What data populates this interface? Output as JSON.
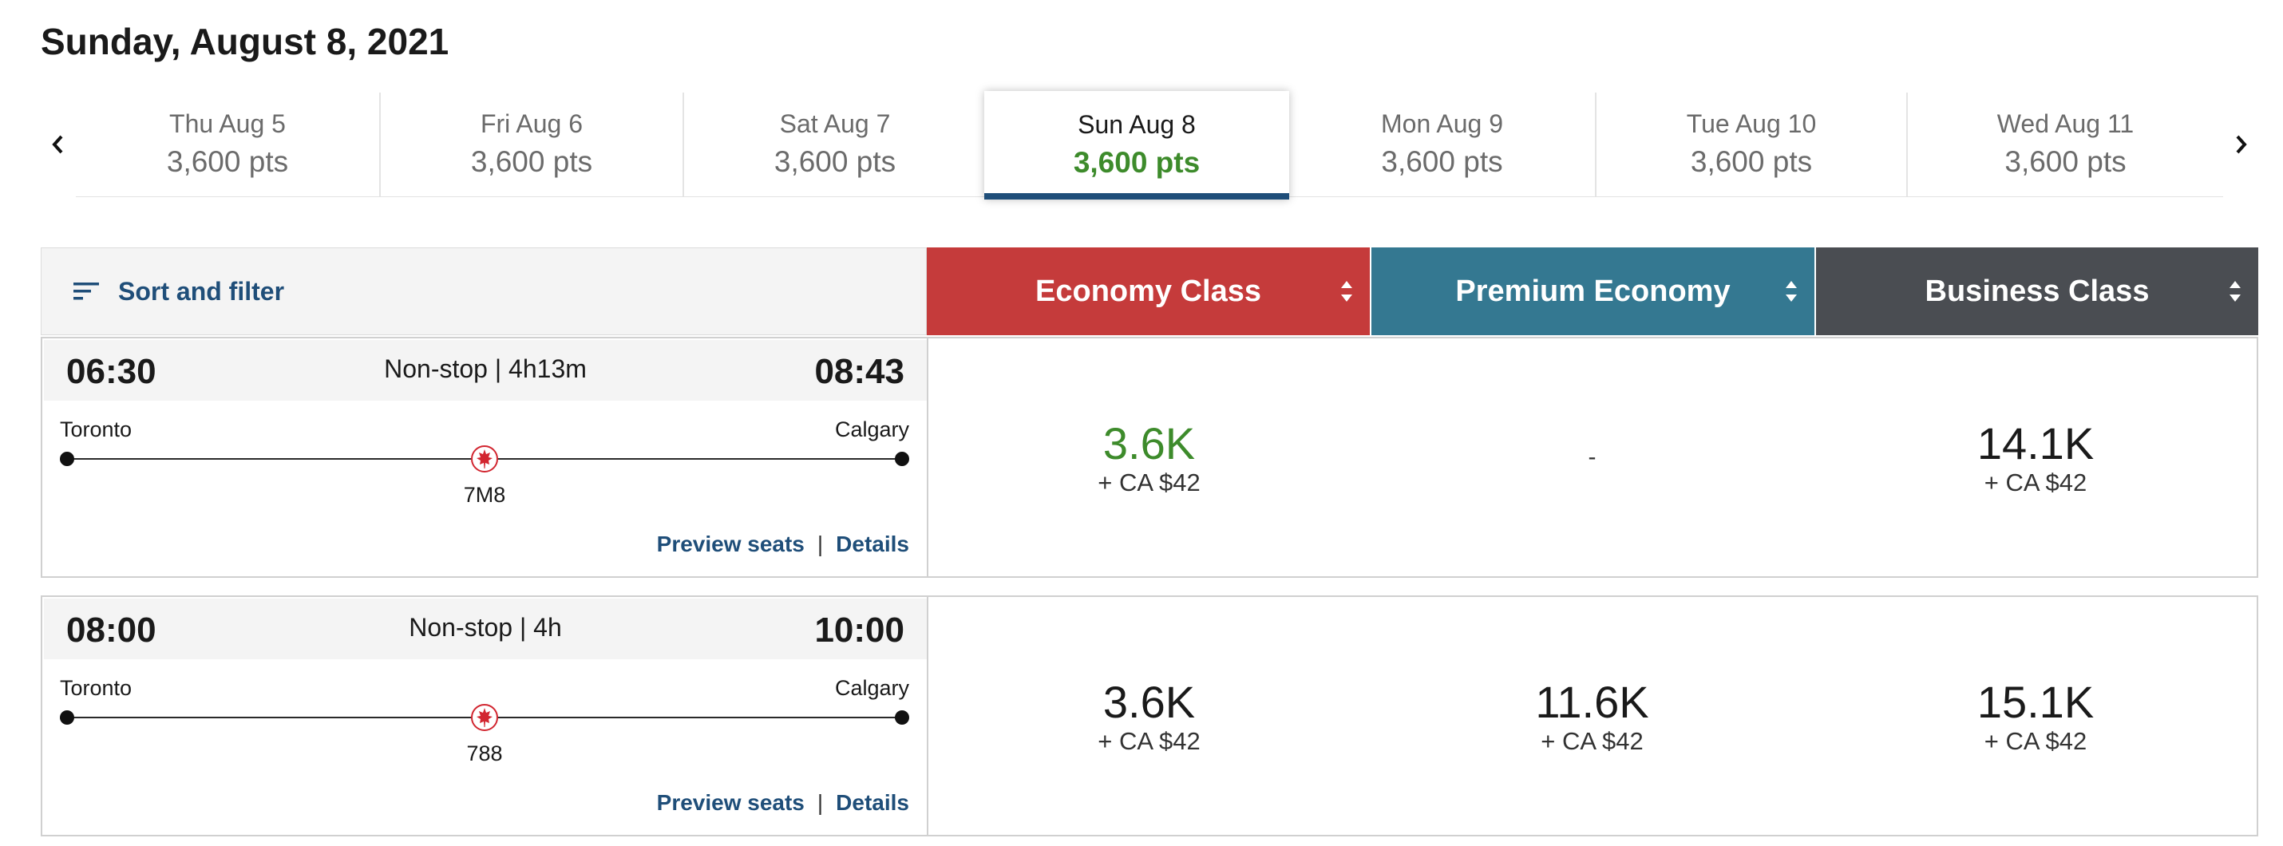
{
  "page_title": "Sunday, August 8, 2021",
  "date_tabs": [
    {
      "day": "Thu Aug 5",
      "pts": "3,600 pts"
    },
    {
      "day": "Fri Aug 6",
      "pts": "3,600 pts"
    },
    {
      "day": "Sat Aug 7",
      "pts": "3,600 pts"
    },
    {
      "day": "Sun Aug 8",
      "pts": "3,600 pts",
      "selected": true
    },
    {
      "day": "Mon Aug 9",
      "pts": "3,600 pts"
    },
    {
      "day": "Tue Aug 10",
      "pts": "3,600 pts"
    },
    {
      "day": "Wed Aug 11",
      "pts": "3,600 pts"
    }
  ],
  "sort_filter_label": "Sort and filter",
  "cabins": [
    {
      "label": "Economy Class",
      "color": "#c53b3b"
    },
    {
      "label": "Premium Economy",
      "color": "#347891"
    },
    {
      "label": "Business Class",
      "color": "#4a4d52"
    }
  ],
  "accent_colors": {
    "link": "#1f4e79",
    "best_price": "#3d8b2b",
    "airline_logo": "#d22630"
  },
  "flights": [
    {
      "depart": "06:30",
      "arrive": "08:43",
      "duration": "Non-stop | 4h13m",
      "origin": "Toronto",
      "destination": "Calgary",
      "aircraft": "7M8",
      "preview_seats": "Preview seats",
      "separator": "|",
      "details": "Details",
      "fares": {
        "economy": {
          "amount": "3.6K",
          "tax": "+ CA $42",
          "best": true
        },
        "premium": {
          "none": "-"
        },
        "business": {
          "amount": "14.1K",
          "tax": "+ CA $42"
        }
      }
    },
    {
      "depart": "08:00",
      "arrive": "10:00",
      "duration": "Non-stop | 4h",
      "origin": "Toronto",
      "destination": "Calgary",
      "aircraft": "788",
      "preview_seats": "Preview seats",
      "separator": "|",
      "details": "Details",
      "fares": {
        "economy": {
          "amount": "3.6K",
          "tax": "+ CA $42"
        },
        "premium": {
          "amount": "11.6K",
          "tax": "+ CA $42"
        },
        "business": {
          "amount": "15.1K",
          "tax": "+ CA $42"
        }
      }
    }
  ],
  "icons": {
    "prev": "chevron-left-icon",
    "next": "chevron-right-icon",
    "filter": "filter-lines-icon",
    "sort": "sort-arrows-icon",
    "airline": "maple-leaf-logo-icon"
  }
}
